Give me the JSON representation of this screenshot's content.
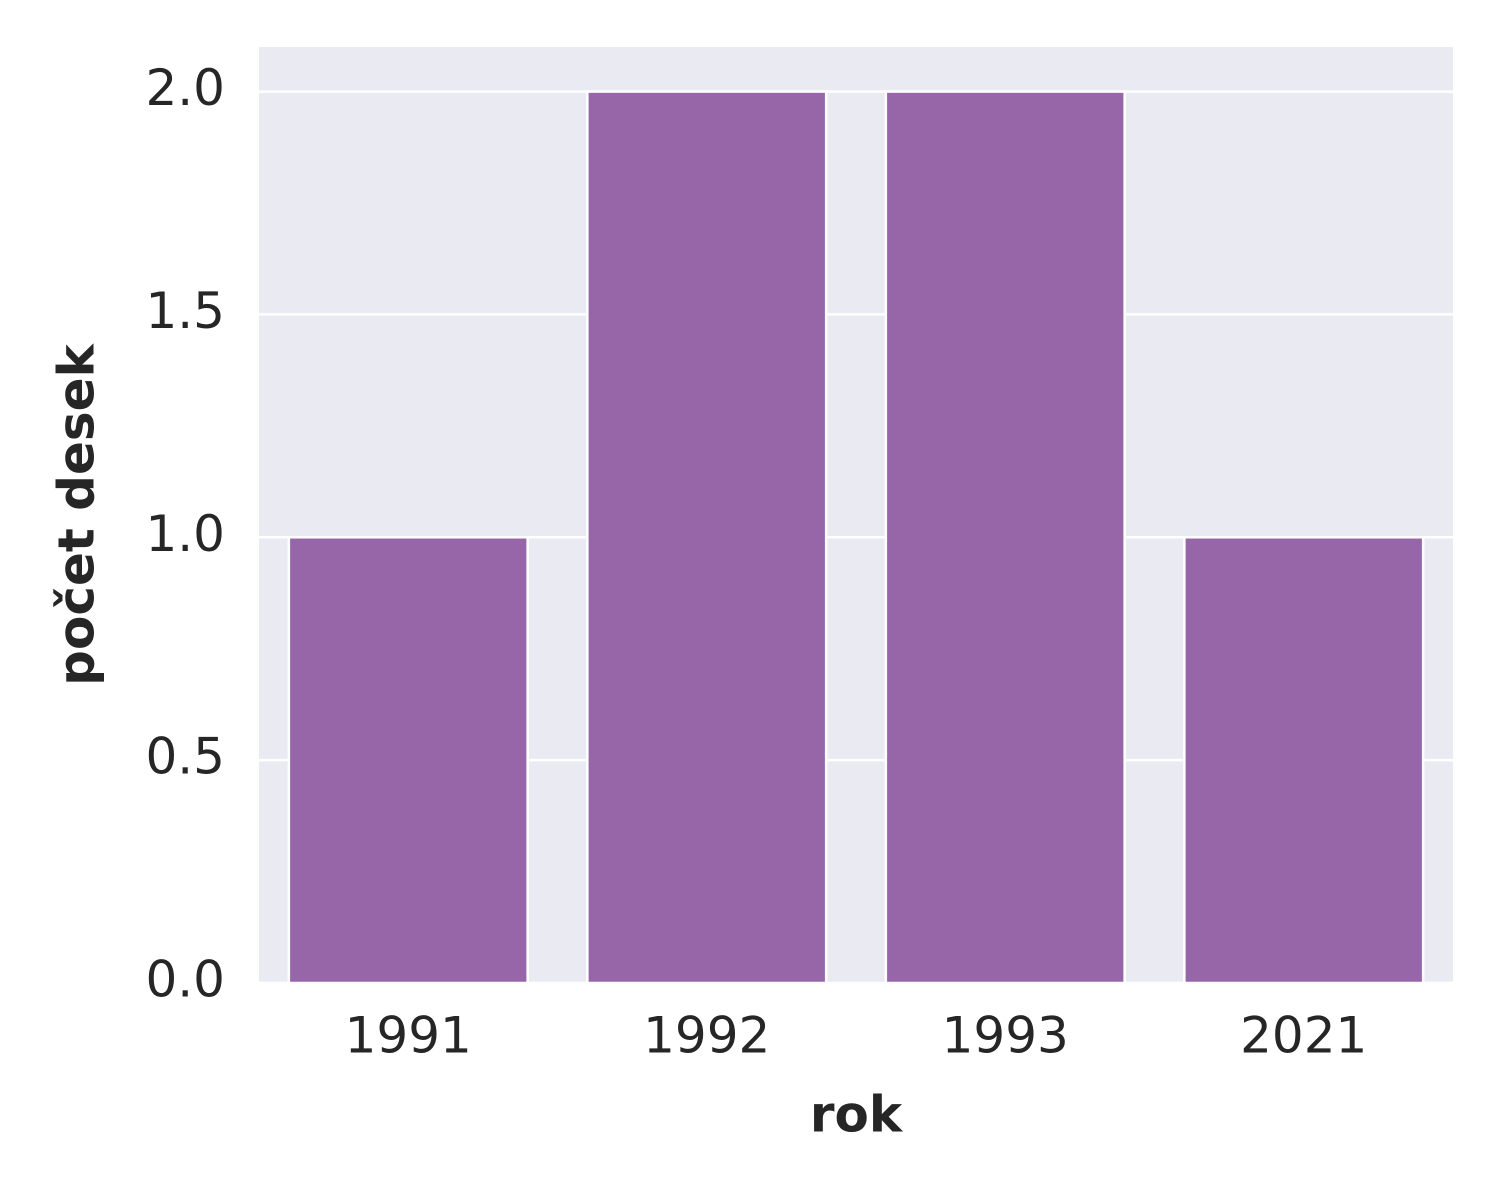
{
  "chart_data": {
    "type": "bar",
    "xlabel": "rok",
    "ylabel": "počet desek",
    "categories": [
      "1991",
      "1992",
      "1993",
      "2021"
    ],
    "values": [
      1,
      2,
      2,
      1
    ],
    "color": "#9666a9",
    "ylim": [
      0,
      2.1
    ],
    "yticks": [
      {
        "value": 0,
        "label": "0.0"
      },
      0.5,
      {
        "value": 1,
        "label": "1.0"
      },
      1.5,
      {
        "value": 2,
        "label": "2.0"
      }
    ],
    "grid": true
  }
}
